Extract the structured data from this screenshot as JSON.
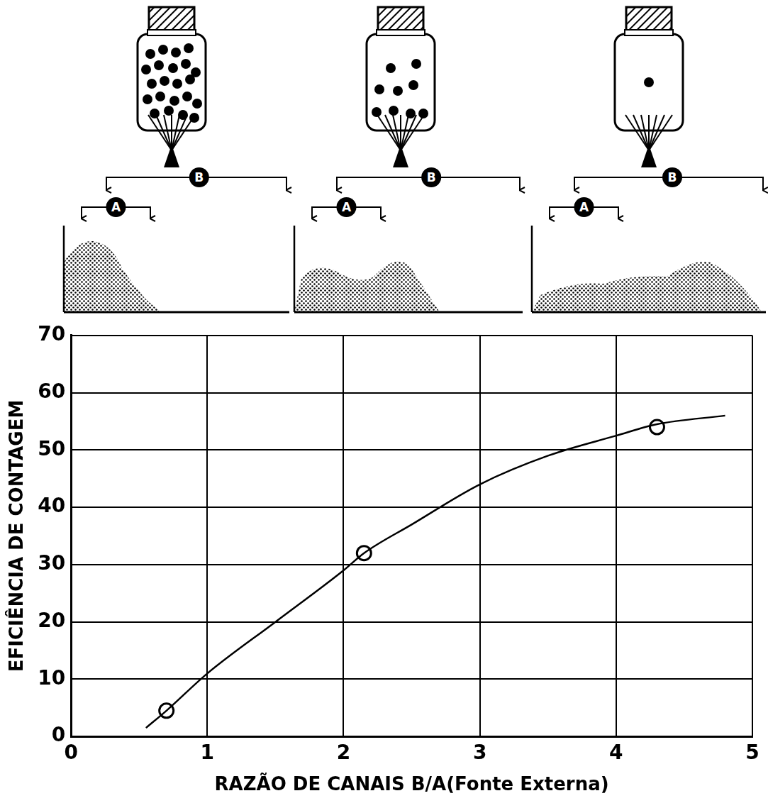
{
  "chart_data": {
    "type": "line",
    "xlabel": "RAZÃO DE CANAIS B/A(Fonte Externa)",
    "ylabel": "EFICIÊNCIA DE CONTAGEM",
    "xlim": [
      0,
      5
    ],
    "xticks": [
      0,
      1,
      2,
      3,
      4,
      5
    ],
    "ylim": [
      0,
      70
    ],
    "yticks": [
      0,
      10,
      20,
      30,
      40,
      50,
      60,
      70
    ],
    "grid": true,
    "series": [
      {
        "color": "#000000",
        "marker": "none",
        "line_style": "solid",
        "x": [
          0.55,
          0.7,
          1.0,
          1.5,
          2.0,
          2.15,
          2.5,
          3.0,
          3.5,
          4.0,
          4.3,
          4.8
        ],
        "values": [
          1.5,
          4.5,
          11,
          20,
          29,
          32,
          37,
          44,
          49,
          52.5,
          54.5,
          56
        ]
      },
      {
        "color": "#000000",
        "marker": "circle",
        "line_style": "none",
        "x": [
          0.7,
          2.15,
          4.3
        ],
        "values": [
          4.5,
          32,
          54
        ]
      }
    ]
  },
  "diagram": {
    "panels": [
      {
        "window_a": "A",
        "window_b": "B"
      },
      {
        "window_a": "A",
        "window_b": "B"
      },
      {
        "window_a": "A",
        "window_b": "B"
      }
    ]
  }
}
